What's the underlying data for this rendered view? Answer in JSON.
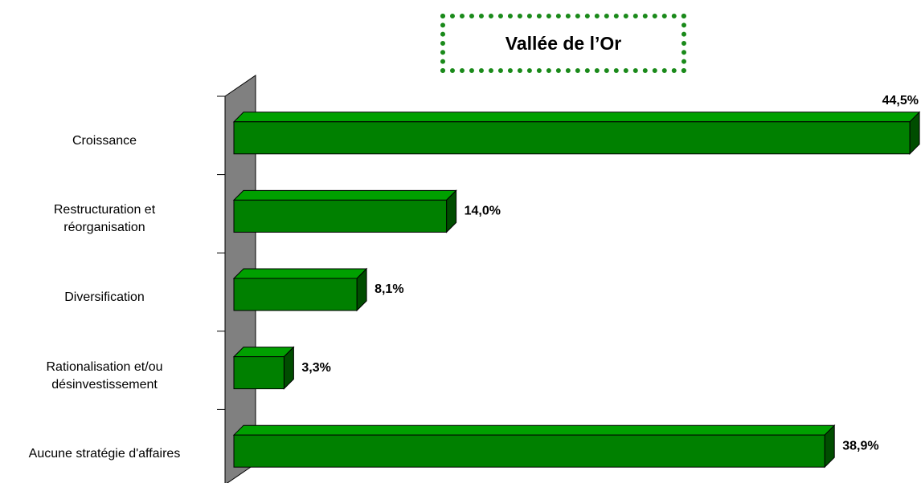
{
  "chart_data": {
    "type": "bar",
    "orientation": "horizontal",
    "title": "Vallée de l’Or",
    "categories": [
      "Croissance",
      "Restructuration et\nréorganisation",
      "Diversification",
      "Rationalisation et/ou\ndésinvestissement",
      "Aucune stratégie d'affaires"
    ],
    "values": [
      44.5,
      14.0,
      8.1,
      3.3,
      38.9
    ],
    "value_labels": [
      "44,5%",
      "14,0%",
      "8,1%",
      "3,3%",
      "38,9%"
    ],
    "color": "#008000"
  }
}
